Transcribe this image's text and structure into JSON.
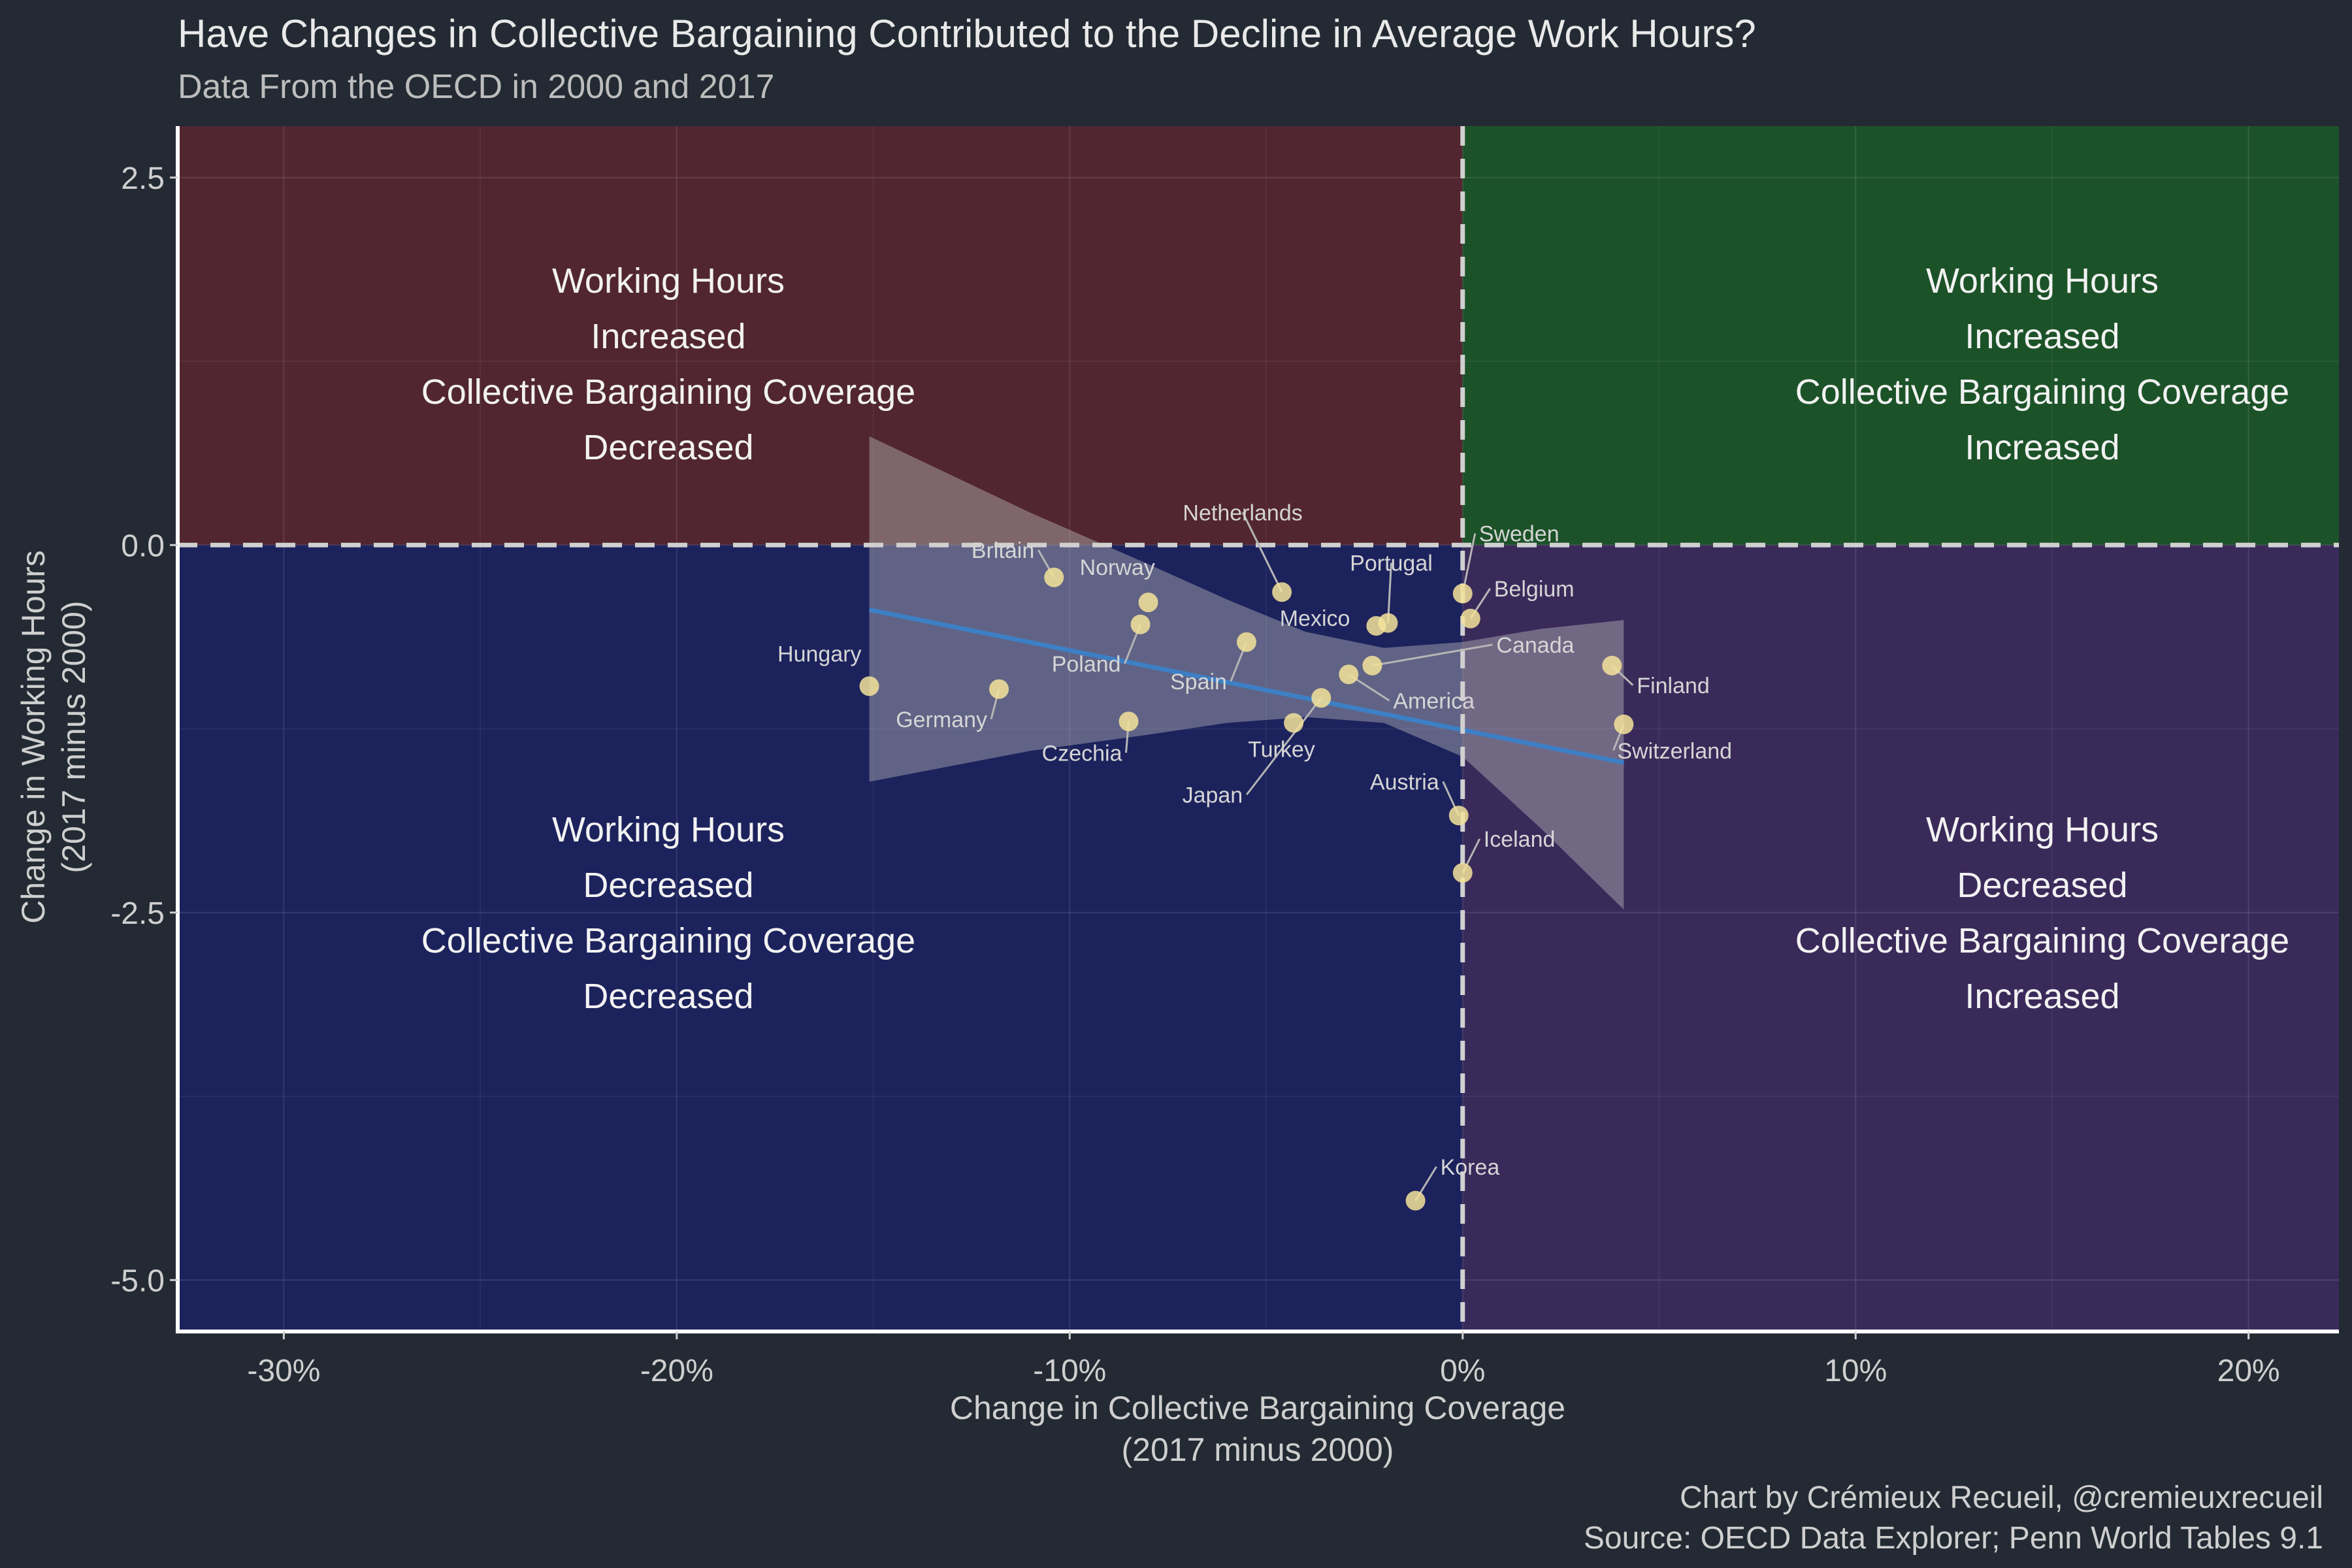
{
  "title": "Have Changes in Collective Bargaining Contributed to the Decline in Average Work Hours?",
  "subtitle": "Data From the OECD in 2000 and 2017",
  "caption_line1": "Chart by Crémieux Recueil, @cremieuxrecueil",
  "caption_line2": "Source: OECD Data Explorer; Penn World Tables 9.1",
  "colors": {
    "background": "#232a33",
    "q_top_left": "#512630",
    "q_top_right": "#1c5228",
    "q_bottom_left": "#1c225c",
    "q_bottom_right": "#3a2a5a",
    "point": "#f5e39a",
    "trend": "#3d7fc4",
    "band": "#bfbfbf",
    "zero_line": "#d0d0d0"
  },
  "quadrant_labels": {
    "top_left": [
      "Working Hours",
      "Increased",
      "Collective Bargaining Coverage",
      "Decreased"
    ],
    "top_right": [
      "Working Hours",
      "Increased",
      "Collective Bargaining Coverage",
      "Increased"
    ],
    "bottom_left": [
      "Working Hours",
      "Decreased",
      "Collective Bargaining Coverage",
      "Decreased"
    ],
    "bottom_right": [
      "Working Hours",
      "Decreased",
      "Collective Bargaining Coverage",
      "Increased"
    ]
  },
  "chart_data": {
    "type": "scatter",
    "title": "Have Changes in Collective Bargaining Contributed to the Decline in Average Work Hours?",
    "subtitle": "Data From the OECD in 2000 and 2017",
    "xlabel": [
      "Change in Collective Bargaining Coverage",
      "(2017 minus 2000)"
    ],
    "ylabel": [
      "Change in Working Hours",
      "(2017 minus 2000)"
    ],
    "x_unit": "percent",
    "xlim": [
      -32.7,
      22.3
    ],
    "ylim": [
      -5.35,
      2.85
    ],
    "x_ticks": [
      -30,
      -20,
      -10,
      0,
      10,
      20
    ],
    "x_tick_labels": [
      "-30%",
      "-20%",
      "-10%",
      "0%",
      "10%",
      "20%"
    ],
    "y_ticks": [
      2.5,
      0.0,
      -2.5,
      -5.0
    ],
    "y_tick_labels": [
      "2.5",
      "0.0",
      "-2.5",
      "-5.0"
    ],
    "grid": true,
    "reference_lines": {
      "x": 0,
      "y": 0,
      "style": "dashed"
    },
    "points": [
      {
        "label": "Hungary",
        "x": -15.1,
        "y": -0.96
      },
      {
        "label": "Germany",
        "x": -11.8,
        "y": -0.98
      },
      {
        "label": "Britain",
        "x": -10.4,
        "y": -0.22
      },
      {
        "label": "Norway",
        "x": -8.0,
        "y": -0.39
      },
      {
        "label": "Poland",
        "x": -8.2,
        "y": -0.54
      },
      {
        "label": "Czechia",
        "x": -8.5,
        "y": -1.2
      },
      {
        "label": "Spain",
        "x": -5.5,
        "y": -0.66
      },
      {
        "label": "Netherlands",
        "x": -4.6,
        "y": -0.32
      },
      {
        "label": "Turkey",
        "x": -4.3,
        "y": -1.21
      },
      {
        "label": "Japan",
        "x": -3.6,
        "y": -1.04
      },
      {
        "label": "America",
        "x": -2.9,
        "y": -0.88
      },
      {
        "label": "Canada",
        "x": -2.3,
        "y": -0.82
      },
      {
        "label": "Mexico",
        "x": -2.2,
        "y": -0.55
      },
      {
        "label": "Portugal",
        "x": -1.9,
        "y": -0.53
      },
      {
        "label": "Korea",
        "x": -1.2,
        "y": -4.46
      },
      {
        "label": "Austria",
        "x": -0.1,
        "y": -1.84
      },
      {
        "label": "Sweden",
        "x": 0.0,
        "y": -0.33
      },
      {
        "label": "Belgium",
        "x": 0.2,
        "y": -0.5
      },
      {
        "label": "Iceland",
        "x": 0.0,
        "y": -2.23
      },
      {
        "label": "Finland",
        "x": 3.8,
        "y": -0.82
      },
      {
        "label": "Switzerland",
        "x": 4.1,
        "y": -1.22
      }
    ],
    "trend_line": {
      "x": [
        -15.1,
        4.1
      ],
      "y": [
        -0.44,
        -1.48
      ]
    },
    "confidence_band": {
      "x": [
        -15.1,
        -11,
        -8,
        -6,
        -4,
        -2,
        0,
        2,
        4.1
      ],
      "upper": [
        0.74,
        0.22,
        -0.13,
        -0.37,
        -0.59,
        -0.7,
        -0.66,
        -0.57,
        -0.51
      ],
      "lower": [
        -1.61,
        -1.4,
        -1.29,
        -1.21,
        -1.17,
        -1.21,
        -1.44,
        -1.93,
        -2.48
      ]
    }
  }
}
